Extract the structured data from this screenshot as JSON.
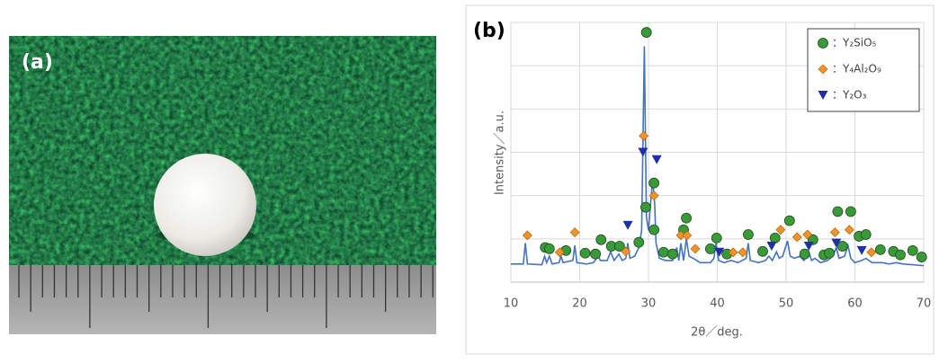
{
  "photo": {
    "label": "(a)"
  },
  "chart_data": {
    "type": "line",
    "label": "(b)",
    "x_label": "2θ／deg.",
    "y_label": "Intensity／a.u.",
    "xlim": [
      10,
      70
    ],
    "xticks": [
      10,
      20,
      30,
      40,
      50,
      60,
      70
    ],
    "ylim": [
      0,
      6
    ],
    "yticks": [
      0,
      1,
      2,
      3,
      4,
      5,
      6
    ],
    "show_ytick_labels": false,
    "grid": true,
    "legend": "top-right",
    "color": "#4472c4",
    "x": [
      10,
      11.8,
      12.1,
      12.4,
      14.5,
      14.9,
      15.2,
      15.6,
      16,
      17,
      17.3,
      17.6,
      19,
      19.3,
      19.6,
      21,
      22,
      22.7,
      23,
      24,
      24.5,
      25,
      25.7,
      26.2,
      26.7,
      27,
      27.3,
      28,
      28.6,
      29.0,
      29.4,
      29.7,
      30.0,
      30.6,
      30.9,
      31.1,
      31.6,
      32.5,
      33.5,
      34.1,
      34.4,
      34.7,
      35.1,
      35.5,
      35.9,
      36.5,
      37.5,
      39,
      39.5,
      39.8,
      40.2,
      41,
      42,
      43,
      44.2,
      44.5,
      44.8,
      46,
      47,
      47.5,
      48,
      48.6,
      49,
      49.5,
      50.2,
      50.6,
      51.2,
      52,
      52.6,
      53.3,
      53.7,
      54.2,
      55,
      56,
      56.8,
      57.3,
      57.7,
      58.5,
      59,
      59.4,
      60,
      61,
      61.6,
      62.5,
      64,
      65,
      66,
      67,
      68.5,
      70
    ],
    "values": [
      0.42,
      0.42,
      0.9,
      0.42,
      0.4,
      0.6,
      0.45,
      0.6,
      0.42,
      0.45,
      0.6,
      0.45,
      0.5,
      0.85,
      0.45,
      0.42,
      0.45,
      0.6,
      0.5,
      0.5,
      0.7,
      0.5,
      0.65,
      0.5,
      0.55,
      0.9,
      0.55,
      0.6,
      0.8,
      1.2,
      5.45,
      1.5,
      1.2,
      2.4,
      1.8,
      0.9,
      0.55,
      0.5,
      0.5,
      0.8,
      0.5,
      0.9,
      0.5,
      1.0,
      0.6,
      0.55,
      0.45,
      0.45,
      0.55,
      0.9,
      0.5,
      0.45,
      0.5,
      0.45,
      0.55,
      0.9,
      0.5,
      0.45,
      0.5,
      0.6,
      0.5,
      0.7,
      0.55,
      0.6,
      0.95,
      0.6,
      0.55,
      0.6,
      0.5,
      0.7,
      0.5,
      0.55,
      0.45,
      0.5,
      0.6,
      0.8,
      0.55,
      0.6,
      0.85,
      0.55,
      0.45,
      0.5,
      0.55,
      0.45,
      0.45,
      0.42,
      0.45,
      0.42,
      0.4,
      0.38
    ],
    "series": [
      {
        "name": "：Y₂SiO₅",
        "color": "#3a9a3a",
        "marker": "circle",
        "x": [
          15.0,
          15.6,
          18.0,
          20.8,
          22.3,
          23.1,
          24.6,
          25.8,
          28.6,
          29.7,
          29.6,
          30.8,
          30.8,
          32.2,
          33.5,
          35.1,
          35.5,
          39.0,
          39.9,
          41.4,
          44.5,
          46.6,
          48.4,
          50.5,
          52.7,
          53.9,
          55.5,
          56.3,
          57.5,
          58.2,
          59.4,
          60.6,
          61.6,
          63.7,
          65.6,
          66.6,
          68.4,
          69.7
        ],
        "values": [
          0.8,
          0.77,
          0.73,
          0.67,
          0.65,
          0.98,
          0.83,
          0.83,
          0.92,
          5.77,
          1.73,
          2.29,
          1.21,
          0.69,
          0.65,
          1.21,
          1.48,
          0.77,
          1.02,
          0.65,
          1.1,
          0.71,
          1.02,
          1.42,
          0.65,
          0.98,
          0.63,
          0.67,
          1.63,
          0.83,
          1.63,
          1.06,
          1.1,
          0.75,
          0.71,
          0.63,
          0.73,
          0.58
        ]
      },
      {
        "name": "：Y₄Al₂O₉",
        "color": "#f0932b",
        "marker": "diamond",
        "x": [
          12.4,
          17.1,
          19.3,
          26.7,
          29.3,
          30.8,
          34.7,
          35.6,
          36.8,
          42.3,
          43.7,
          49.2,
          51.6,
          53.1,
          57.1,
          59.2,
          62.4
        ],
        "values": [
          1.08,
          0.69,
          1.15,
          0.71,
          3.38,
          2.0,
          1.08,
          1.08,
          0.77,
          0.69,
          0.69,
          1.21,
          1.04,
          1.1,
          1.15,
          1.21,
          0.69
        ]
      },
      {
        "name": "：Y₂O₃",
        "color": "#1f2fa8",
        "marker": "triangle",
        "x": [
          27.0,
          29.2,
          31.2,
          40.3,
          47.9,
          53.3,
          57.3,
          61.0
        ],
        "values": [
          1.31,
          3.0,
          2.83,
          0.69,
          0.83,
          0.83,
          0.9,
          0.73
        ]
      }
    ]
  }
}
